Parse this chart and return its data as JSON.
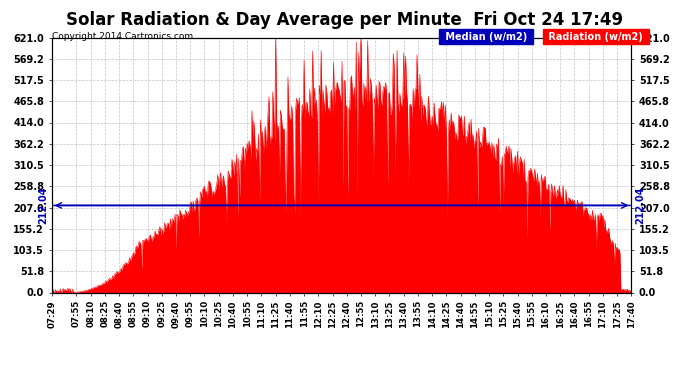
{
  "title": "Solar Radiation & Day Average per Minute  Fri Oct 24 17:49",
  "copyright": "Copyright 2014 Cartronics.com",
  "median_value": 212.04,
  "ymin": 0.0,
  "ymax": 621.0,
  "yticks": [
    0.0,
    51.8,
    103.5,
    155.2,
    207.0,
    258.8,
    310.5,
    362.2,
    414.0,
    465.8,
    517.5,
    569.2,
    621.0
  ],
  "median_label": "Median (w/m2)",
  "radiation_label": "Radiation (w/m2)",
  "median_color": "#0000bb",
  "radiation_color": "#ff0000",
  "background_color": "#ffffff",
  "grid_color": "#aaaaaa",
  "title_fontsize": 12,
  "tick_fontsize": 7,
  "xstart_minutes": 449,
  "xend_minutes": 1060,
  "seed": 17
}
